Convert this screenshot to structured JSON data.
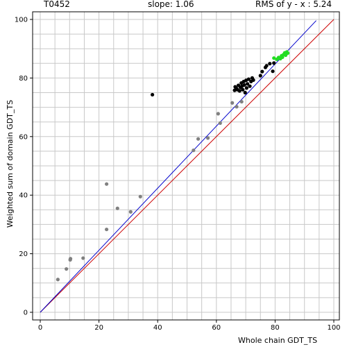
{
  "header": {
    "target_id": "T0452",
    "slope_text": "slope: 1.06",
    "rms_text": "RMS of  y - x : 5.24"
  },
  "colors": {
    "grid": "#c8c8c8",
    "frame": "#000000",
    "diagonal": "#cc0000",
    "fit_line": "#0000cc",
    "point_gray": "#808080",
    "point_black": "#000000",
    "point_green": "#22dd22"
  },
  "chart_data": {
    "type": "scatter",
    "title": "",
    "xlabel": "Whole chain GDT_TS",
    "ylabel": "Weighted sum of domain GDT_TS",
    "xlim": [
      0,
      100
    ],
    "ylim": [
      0,
      100
    ],
    "grid": true,
    "x_ticks": [
      0,
      20,
      40,
      60,
      80,
      100
    ],
    "y_ticks": [
      0,
      20,
      40,
      60,
      80,
      100
    ],
    "x_tick_labels": [
      "0",
      "20",
      "40",
      "60",
      "80",
      "100"
    ],
    "y_tick_labels": [
      "0",
      "20",
      "40",
      "60",
      "80",
      "100"
    ],
    "reference_lines": [
      {
        "kind": "y=x",
        "color": "red",
        "x": [
          0,
          100
        ],
        "y": [
          0,
          100
        ]
      },
      {
        "kind": "fit",
        "color": "blue",
        "slope": 1.06,
        "x": [
          0,
          94
        ],
        "y": [
          0,
          99.6
        ]
      }
    ],
    "series": [
      {
        "color": "gray",
        "points": [
          [
            6,
            11.2
          ],
          [
            8.9,
            14.8
          ],
          [
            10.2,
            17.9
          ],
          [
            10.3,
            18.3
          ],
          [
            14.6,
            18.5
          ],
          [
            22.6,
            28.3
          ],
          [
            22.6,
            43.8
          ],
          [
            26.3,
            35.5
          ],
          [
            30.8,
            34.3
          ],
          [
            34.1,
            39.5
          ],
          [
            52.2,
            55.3
          ],
          [
            53.8,
            59.2
          ],
          [
            57.1,
            59.5
          ],
          [
            60.6,
            67.8
          ],
          [
            61.3,
            64.6
          ],
          [
            65.4,
            71.5
          ],
          [
            66.9,
            70.2
          ],
          [
            68.6,
            71.9
          ]
        ]
      },
      {
        "color": "black",
        "points": [
          [
            38.2,
            74.3
          ],
          [
            66.2,
            75.8
          ],
          [
            66.4,
            77.0
          ],
          [
            66.8,
            76.5
          ],
          [
            67.2,
            76.0
          ],
          [
            67.5,
            77.5
          ],
          [
            67.9,
            75.6
          ],
          [
            68.2,
            76.8
          ],
          [
            68.5,
            78.3
          ],
          [
            68.7,
            77.2
          ],
          [
            69.0,
            76.0
          ],
          [
            69.3,
            78.8
          ],
          [
            69.5,
            77.6
          ],
          [
            69.8,
            75.0
          ],
          [
            70.1,
            79.2
          ],
          [
            70.3,
            76.6
          ],
          [
            70.6,
            78.0
          ],
          [
            71.0,
            79.6
          ],
          [
            71.4,
            77.2
          ],
          [
            71.8,
            78.8
          ],
          [
            72.2,
            80.0
          ],
          [
            72.6,
            79.3
          ],
          [
            75.0,
            80.8
          ],
          [
            75.6,
            82.2
          ],
          [
            76.7,
            83.6
          ],
          [
            77.1,
            84.2
          ],
          [
            78.2,
            84.9
          ],
          [
            79.2,
            82.3
          ],
          [
            79.6,
            85.1
          ]
        ]
      },
      {
        "color": "green",
        "points": [
          [
            79.6,
            86.8
          ],
          [
            80.6,
            86.4
          ],
          [
            81.2,
            87.0
          ],
          [
            81.8,
            86.6
          ],
          [
            82.2,
            87.6
          ],
          [
            82.5,
            87.1
          ],
          [
            82.9,
            88.0
          ],
          [
            83.3,
            88.6
          ],
          [
            83.6,
            87.8
          ],
          [
            84.0,
            88.9
          ],
          [
            84.3,
            88.5
          ]
        ]
      }
    ]
  }
}
